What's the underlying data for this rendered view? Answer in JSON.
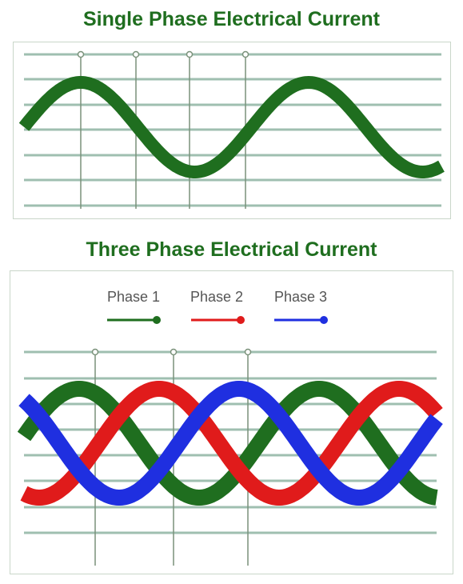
{
  "single_phase": {
    "title": "Single Phase Electrical Current",
    "wave_color": "#1f6e1f"
  },
  "three_phase": {
    "title": "Three Phase Electrical Current",
    "legend": [
      {
        "label": "Phase 1",
        "color": "#1f6e1f"
      },
      {
        "label": "Phase 2",
        "color": "#e01b1b"
      },
      {
        "label": "Phase 3",
        "color": "#1f2fe0"
      }
    ]
  },
  "colors": {
    "title": "#1f6e1f",
    "gridline": "#9fbfb0",
    "marker_line": "#7a917a"
  }
}
